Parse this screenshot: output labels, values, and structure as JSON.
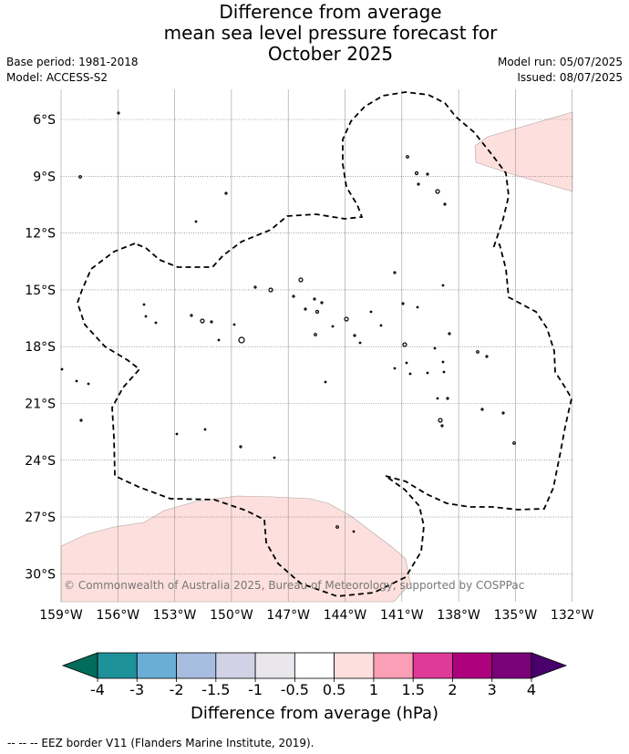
{
  "title": {
    "line1": "Difference from average",
    "line2": "mean sea level pressure forecast for",
    "line3": "October 2025"
  },
  "meta": {
    "base_period": "Base period: 1981-2018",
    "model": "Model: ACCESS-S2",
    "model_run": "Model run: 05/07/2025",
    "issued": "Issued: 08/07/2025"
  },
  "copyright": "© Commonwealth of Australia 2025, Bureau of Meteorology, supported by COSPPac",
  "footer": "-- -- -- EEZ border V11 (Flanders Marine Institute, 2019).",
  "colors": {
    "pale_pink": "#fde0dd",
    "grid": "#999999"
  },
  "chart_data": {
    "type": "heatmap",
    "title": "Difference from average mean sea level pressure forecast for October 2025",
    "x_ticks": [
      "159°W",
      "156°W",
      "153°W",
      "150°W",
      "147°W",
      "144°W",
      "141°W",
      "138°W",
      "135°W",
      "132°W"
    ],
    "y_ticks": [
      "6°S",
      "9°S",
      "12°S",
      "15°S",
      "18°S",
      "21°S",
      "24°S",
      "27°S",
      "30°S"
    ],
    "lon_range": [
      -159,
      -132
    ],
    "lat_range": [
      -32,
      -4.5
    ],
    "regions": [
      {
        "name": "",
        "category": "0.5 to 1",
        "color": "#fde0dd",
        "location": "north-east corner"
      },
      {
        "name": "",
        "category": "0.5 to 1",
        "color": "#fde0dd",
        "location": "south-west"
      },
      {
        "name": "",
        "category": "-0.5 to 0.5",
        "color": "#ffffff",
        "location": "remainder of domain"
      }
    ],
    "colorbar": {
      "label": "Difference from average (hPa)",
      "tick_labels": [
        "-4",
        "-3",
        "-2",
        "-1.5",
        "-1",
        "-0.5",
        "0.5",
        "1",
        "1.5",
        "2",
        "3",
        "4"
      ],
      "colors": [
        "#1e9199",
        "#6aaed5",
        "#a7bde0",
        "#d2d2e6",
        "#e9e6ec",
        "#ffffff",
        "#fde0dd",
        "#fa9fb5",
        "#df3a98",
        "#ae017e",
        "#7a0177"
      ],
      "extend_low_color": "#016c59",
      "extend_high_color": "#49006a"
    }
  }
}
